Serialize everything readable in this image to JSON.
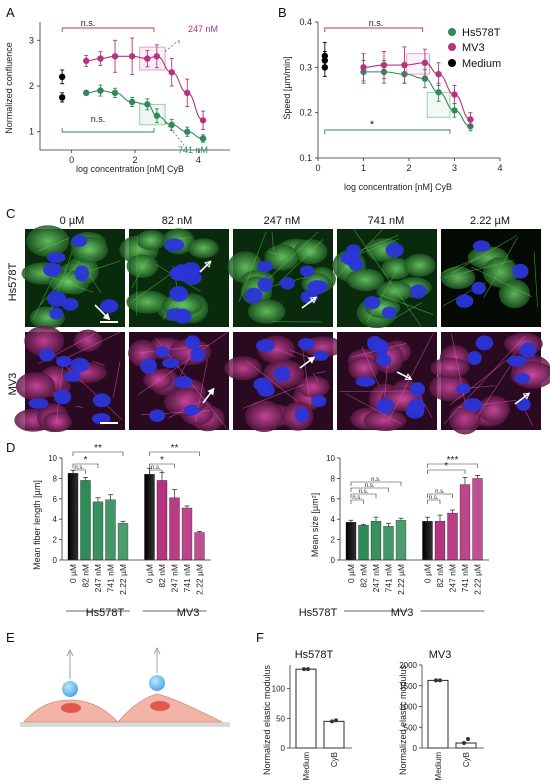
{
  "panels": {
    "A": {
      "label": "A",
      "xlabel": "log concentration [nM] CyB",
      "ylabel": "Normalized confluence",
      "x_ticks": [
        "0",
        "2",
        "4"
      ],
      "y_ticks": [
        "1",
        "2",
        "3"
      ],
      "ns_top": "n.s.",
      "ns_bottom": "n.s.",
      "annot_247": "247 nM",
      "annot_741": "741 nM"
    },
    "B": {
      "label": "B",
      "xlabel": "log concentration [nM] CyB",
      "ylabel": "Speed [µm/min]",
      "x_ticks": [
        "0",
        "1",
        "2",
        "3",
        "4"
      ],
      "y_ticks": [
        "0.1",
        "0.2",
        "0.3",
        "0.4"
      ],
      "ns_top": "n.s.",
      "star": "*",
      "legend": [
        "Hs578T",
        "MV3",
        "Medium"
      ]
    },
    "C": {
      "label": "C",
      "columns": [
        "0 µM",
        "82 nM",
        "247 nM",
        "741 nM",
        "2.22 µM"
      ],
      "rows": [
        "Hs578T",
        "MV3"
      ]
    },
    "D": {
      "label": "D",
      "left_ylabel": "Mean fiber length [µm]",
      "right_ylabel": "Mean size [µm²]",
      "left_yticks": [
        "0",
        "2",
        "4",
        "6",
        "8",
        "10"
      ],
      "right_yticks": [
        "0",
        "2",
        "4",
        "6",
        "8",
        "10"
      ],
      "conc_labels": [
        "0 µM",
        "82 nM",
        "247 nM",
        "741 nM",
        "2.22 µM"
      ],
      "groups": [
        "Hs578T",
        "MV3"
      ],
      "sig_left": [
        "n.s.",
        "n.s.",
        "*",
        "*",
        "**",
        "**"
      ],
      "sig_right": [
        "n.s.",
        "n.s.",
        "n.s.",
        "n.s.",
        "n.s.",
        "n.s.",
        "*",
        "***"
      ]
    },
    "E": {
      "label": "E"
    },
    "F": {
      "label": "F",
      "ylabel": "Normalized elastic modulus",
      "left_title": "Hs578T",
      "right_title": "MV3",
      "categories": [
        "Medium",
        "CyB"
      ],
      "left_yticks": [
        "0",
        "50",
        "100"
      ],
      "right_yticks": [
        "0",
        "500",
        "1000",
        "1500",
        "2000"
      ]
    }
  },
  "colors": {
    "hs578t": "#2e8b57",
    "mv3": "#b5337f",
    "medium": "#000000",
    "hs578t_light": "#4aa877",
    "mv3_light": "#d0479a"
  },
  "chart_data": [
    {
      "type": "scatter",
      "panel": "A",
      "xlabel": "log concentration [nM] CyB",
      "ylabel": "Normalized confluence",
      "xlim": [
        -1,
        5
      ],
      "ylim": [
        0.6,
        3.4
      ],
      "series": [
        {
          "name": "MV3",
          "x": [
            0.46,
            0.91,
            1.37,
            1.91,
            2.39,
            2.69,
            3.16,
            3.65,
            4.15
          ],
          "y": [
            2.55,
            2.6,
            2.65,
            2.65,
            2.6,
            2.65,
            2.3,
            1.85,
            1.25
          ],
          "err": [
            0.12,
            0.15,
            0.35,
            0.4,
            0.18,
            0.25,
            0.3,
            0.3,
            0.2
          ]
        },
        {
          "name": "Hs578T",
          "x": [
            0.46,
            0.91,
            1.37,
            1.91,
            2.39,
            2.69,
            3.16,
            3.65,
            4.15
          ],
          "y": [
            1.85,
            1.9,
            1.85,
            1.65,
            1.6,
            1.35,
            1.15,
            1.0,
            0.85
          ],
          "err": [
            0.05,
            0.12,
            0.1,
            0.1,
            0.12,
            0.15,
            0.12,
            0.1,
            0.08
          ]
        },
        {
          "name": "Medium",
          "x": [
            -0.3,
            -0.3
          ],
          "y": [
            2.2,
            1.75
          ],
          "err": [
            0.15,
            0.1
          ]
        }
      ]
    },
    {
      "type": "scatter",
      "panel": "B",
      "xlabel": "log concentration [nM] CyB",
      "ylabel": "Speed [µm/min]",
      "xlim": [
        0,
        4
      ],
      "ylim": [
        0.1,
        0.4
      ],
      "series": [
        {
          "name": "Hs578T",
          "x": [
            1.0,
            1.45,
            1.9,
            2.35,
            2.65,
            3.0,
            3.35
          ],
          "y": [
            0.29,
            0.29,
            0.285,
            0.275,
            0.245,
            0.205,
            0.17
          ],
          "err": [
            0.025,
            0.025,
            0.02,
            0.02,
            0.02,
            0.015,
            0.01
          ]
        },
        {
          "name": "MV3",
          "x": [
            1.0,
            1.45,
            1.9,
            2.35,
            2.65,
            3.0,
            3.35
          ],
          "y": [
            0.3,
            0.305,
            0.305,
            0.31,
            0.285,
            0.24,
            0.185
          ],
          "err": [
            0.03,
            0.03,
            0.04,
            0.03,
            0.025,
            0.02,
            0.015
          ]
        },
        {
          "name": "Medium",
          "x": [
            0.15,
            0.15,
            0.15
          ],
          "y": [
            0.325,
            0.315,
            0.3
          ],
          "err": [
            0.03,
            0.02,
            0.02
          ]
        }
      ]
    },
    {
      "type": "bar",
      "panel": "D-left",
      "ylabel": "Mean fiber length [µm]",
      "ylim": [
        0,
        10
      ],
      "categories": [
        "0 µM",
        "82 nM",
        "247 nM",
        "741 nM",
        "2.22 µM"
      ],
      "series": [
        {
          "name": "Hs578T",
          "values": [
            8.5,
            7.8,
            5.7,
            5.9,
            3.6
          ],
          "err": [
            0.3,
            0.3,
            0.4,
            0.5,
            0.2
          ]
        },
        {
          "name": "MV3",
          "values": [
            8.4,
            7.8,
            6.1,
            5.1,
            2.7
          ],
          "err": [
            0.6,
            0.8,
            0.8,
            0.2,
            0.1
          ]
        }
      ]
    },
    {
      "type": "bar",
      "panel": "D-right",
      "ylabel": "Mean size [µm²]",
      "ylim": [
        0,
        10
      ],
      "categories": [
        "0 µM",
        "82 nM",
        "247 nM",
        "741 nM",
        "2.22 µM"
      ],
      "series": [
        {
          "name": "Hs578T",
          "values": [
            3.7,
            3.4,
            3.8,
            3.3,
            3.9
          ],
          "err": [
            0.2,
            0.1,
            0.4,
            0.3,
            0.2
          ]
        },
        {
          "name": "MV3",
          "values": [
            3.8,
            3.8,
            4.6,
            7.4,
            8.0
          ],
          "err": [
            0.4,
            0.6,
            0.3,
            0.7,
            0.3
          ]
        }
      ]
    },
    {
      "type": "bar",
      "panel": "F-left",
      "title": "Hs578T",
      "ylabel": "Normalized elastic modulus",
      "categories": [
        "Medium",
        "CyB"
      ],
      "values": [
        133,
        45
      ],
      "ylim": [
        0,
        140
      ]
    },
    {
      "type": "bar",
      "panel": "F-right",
      "title": "MV3",
      "ylabel": "Normalized elastic modulus",
      "categories": [
        "Medium",
        "CyB"
      ],
      "values": [
        1630,
        120
      ],
      "ylim": [
        0,
        2000
      ]
    }
  ]
}
